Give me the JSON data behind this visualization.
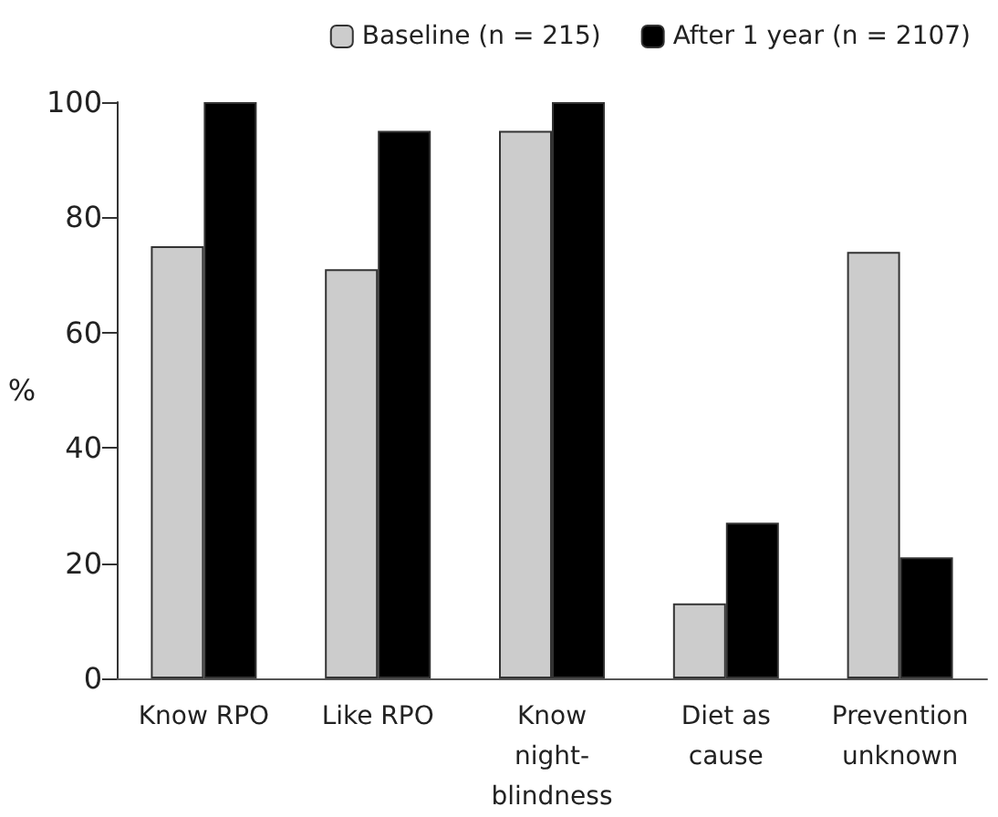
{
  "chart_data": {
    "type": "bar",
    "ylabel": "%",
    "categories": [
      "Know RPO",
      "Like RPO",
      "Know\nnight-\nblindness",
      "Diet as\ncause",
      "Prevention\nunknown"
    ],
    "series": [
      {
        "name": "Baseline (n = 215)",
        "color": "#cccccc",
        "values": [
          75,
          71,
          95,
          13,
          74
        ]
      },
      {
        "name": "After 1 year (n = 2107)",
        "color": "#000000",
        "values": [
          100,
          95,
          100,
          27,
          21
        ]
      }
    ],
    "ylim": [
      0,
      100
    ],
    "yticks": [
      0,
      20,
      40,
      60,
      80,
      100
    ],
    "grid": false,
    "legend": "top right"
  }
}
